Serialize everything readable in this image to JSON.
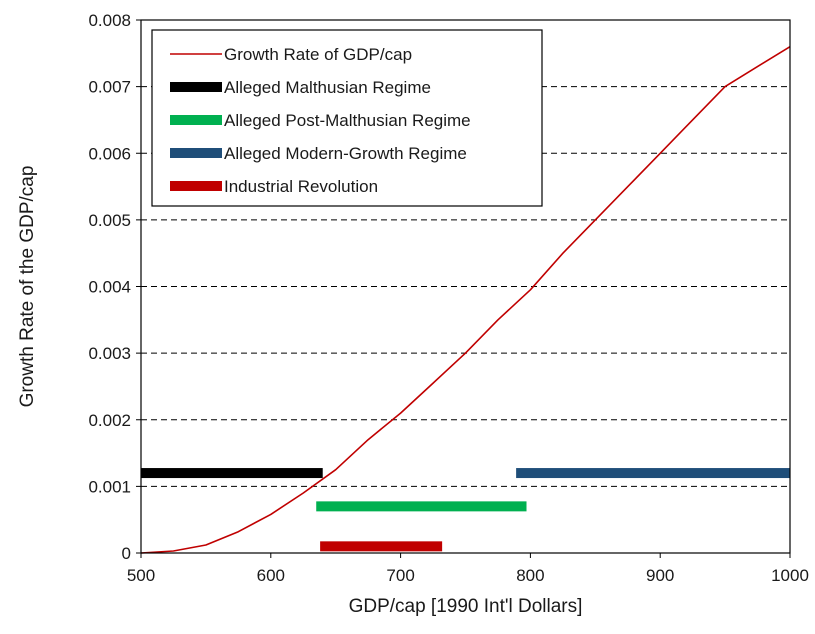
{
  "chart_data": {
    "type": "line",
    "title": "",
    "xlabel": "GDP/cap [1990 Int'l Dollars]",
    "ylabel": "Growth Rate of the GDP/cap",
    "xlim": [
      500,
      1000
    ],
    "ylim": [
      0,
      0.008
    ],
    "x_ticks": [
      500,
      600,
      700,
      800,
      900,
      1000
    ],
    "x_tick_labels": [
      "500",
      "600",
      "700",
      "800",
      "900",
      "1000"
    ],
    "y_ticks": [
      0,
      0.001,
      0.002,
      0.003,
      0.004,
      0.005,
      0.006,
      0.007,
      0.008
    ],
    "y_tick_labels": [
      "0",
      "0.001",
      "0.002",
      "0.003",
      "0.004",
      "0.005",
      "0.006",
      "0.007",
      "0.008"
    ],
    "grid": "horizontal dashed",
    "legend_position": "top-left",
    "series": [
      {
        "name": "Growth Rate of GDP/cap",
        "kind": "line",
        "color": "#c00000",
        "x": [
          500,
          525,
          550,
          575,
          600,
          625,
          650,
          675,
          700,
          725,
          750,
          775,
          800,
          825,
          850,
          875,
          900,
          925,
          950,
          975,
          1000
        ],
        "y": [
          0,
          3e-05,
          0.00012,
          0.00032,
          0.00058,
          0.0009,
          0.00125,
          0.0017,
          0.0021,
          0.00255,
          0.003,
          0.0035,
          0.00395,
          0.0045,
          0.005,
          0.0055,
          0.006,
          0.0065,
          0.007,
          0.0073,
          0.0076
        ]
      },
      {
        "name": "Alleged Malthusian Regime",
        "kind": "range",
        "color": "#000000",
        "x_start": 500,
        "x_end": 640,
        "y": 0.0012
      },
      {
        "name": "Alleged Post-Malthusian Regime",
        "kind": "range",
        "color": "#00b050",
        "x_start": 635,
        "x_end": 797,
        "y": 0.0007
      },
      {
        "name": "Alleged Modern-Growth Regime",
        "kind": "range",
        "color": "#1f4e79",
        "x_start": 789,
        "x_end": 1000,
        "y": 0.0012
      },
      {
        "name": "Industrial Revolution",
        "kind": "range",
        "color": "#c00000",
        "x_start": 638,
        "x_end": 732,
        "y": 0.0001
      }
    ]
  }
}
